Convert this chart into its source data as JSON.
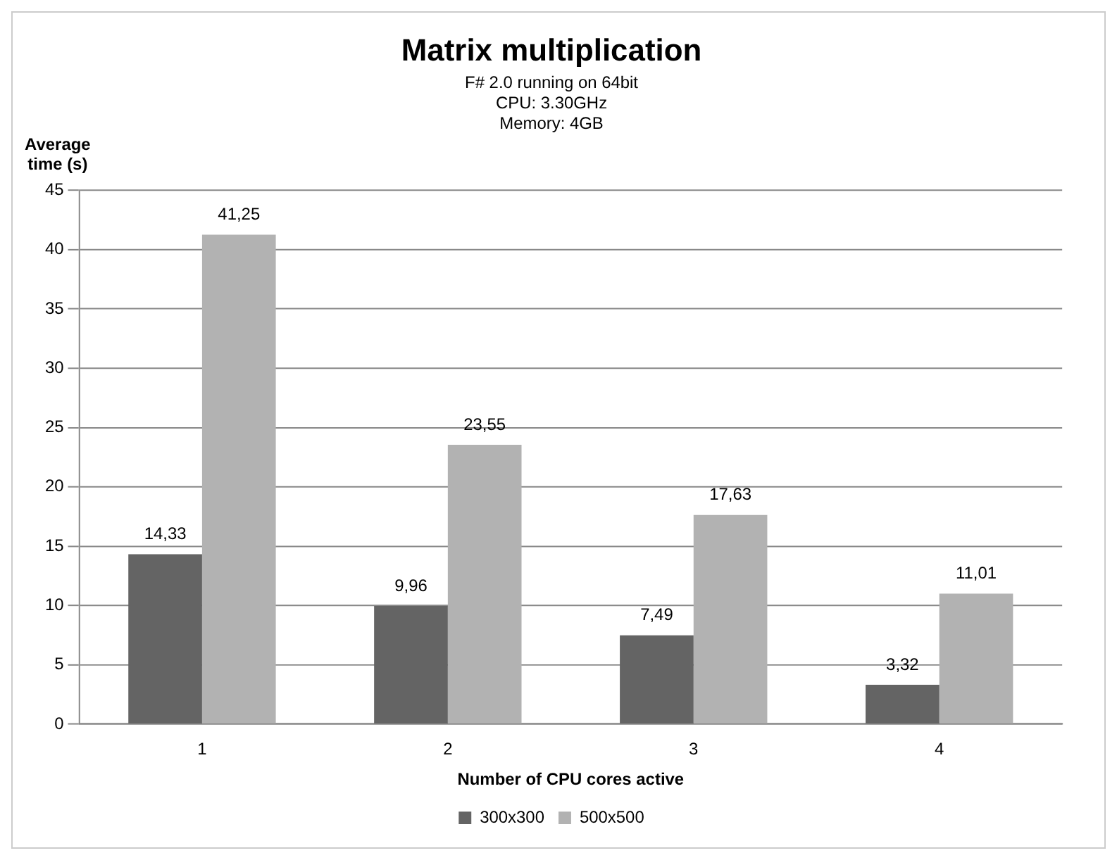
{
  "chart_data": {
    "type": "bar",
    "title": "Matrix multiplication",
    "subtitle": "F# 2.0 running on 64bit\nCPU: 3.30GHz\nMemory: 4GB",
    "xlabel": "Number of CPU cores active",
    "ylabel": "Average time (s)",
    "categories": [
      "1",
      "2",
      "3",
      "4"
    ],
    "series": [
      {
        "name": "300x300",
        "color": "#646464",
        "values": [
          14.33,
          9.96,
          7.49,
          3.32
        ],
        "value_labels": [
          "14,33",
          "9,96",
          "7,49",
          "3,32"
        ]
      },
      {
        "name": "500x500",
        "color": "#b2b2b2",
        "values": [
          41.25,
          23.55,
          17.63,
          11.01
        ],
        "value_labels": [
          "41,25",
          "23,55",
          "17,63",
          "11,01"
        ]
      }
    ],
    "ylim": [
      0,
      45
    ],
    "yticks": [
      0,
      5,
      10,
      15,
      20,
      25,
      30,
      35,
      40,
      45
    ],
    "grid": "y",
    "legend": "bottom"
  }
}
